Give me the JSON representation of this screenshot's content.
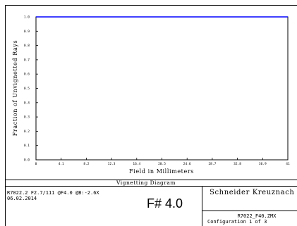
{
  "chart_data": {
    "type": "line",
    "title": "Vignetting Diagram",
    "xlabel": "Field in Millimeters",
    "ylabel": "Fraction of Unvignetted Rays",
    "xlim": [
      0,
      41
    ],
    "ylim": [
      0,
      1.0
    ],
    "x_ticks": [
      "0",
      "4.1",
      "8.2",
      "12.3",
      "16.4",
      "20.5",
      "24.6",
      "28.7",
      "32.8",
      "36.9",
      "41"
    ],
    "y_ticks": [
      "0.0",
      "0.1",
      "0.2",
      "0.3",
      "0.4",
      "0.5",
      "0.6",
      "0.7",
      "0.8",
      "0.9",
      "1.0"
    ],
    "grid": false,
    "series": [
      {
        "color": "#0000ff",
        "x": [
          0,
          41
        ],
        "y": [
          1.0,
          1.0
        ]
      }
    ]
  },
  "footer": {
    "diagram_name": "Vignetting Diagram",
    "lens_line1": "R7022.2 F2.7/111 @F4.0 @B:-2.6X",
    "lens_line2": "06.02.2014",
    "f_number": "F# 4.0",
    "company": "Schneider Kreuznach",
    "filename": "R7022_F40.ZMX",
    "configuration": "Configuration 1 of 3"
  }
}
